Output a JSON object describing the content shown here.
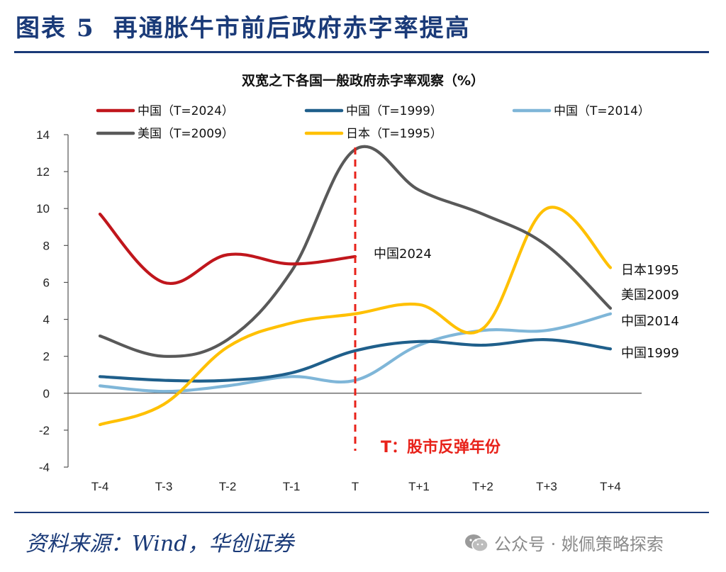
{
  "header": {
    "prefix": "图表",
    "number": "5",
    "title": "再通胀牛市前后政府赤字率提高"
  },
  "footer": {
    "source": "资料来源：Wind，华创证券"
  },
  "watermark": {
    "text": "公众号 · 姚佩策略探索",
    "icon": "wechat-icon"
  },
  "chart_data": {
    "type": "line",
    "title": "双宽之下各国一般政府赤字率观察（%）",
    "categories": [
      "T-4",
      "T-3",
      "T-2",
      "T-1",
      "T",
      "T+1",
      "T+2",
      "T+3",
      "T+4"
    ],
    "ylim": [
      -4,
      14
    ],
    "yticks": [
      -4,
      -2,
      0,
      2,
      4,
      6,
      8,
      10,
      12,
      14
    ],
    "grid": false,
    "legend_position": "top",
    "series": [
      {
        "name": "中国（T=2024）",
        "end_label": "中国2024",
        "color": "#c0161c",
        "values": [
          9.7,
          6.0,
          7.5,
          7.0,
          7.4,
          null,
          null,
          null,
          null
        ]
      },
      {
        "name": "中国（T=1999）",
        "end_label": "中国1999",
        "color": "#1f5f8b",
        "values": [
          0.9,
          0.7,
          0.7,
          1.1,
          2.3,
          2.8,
          2.6,
          2.9,
          2.4
        ]
      },
      {
        "name": "中国（T=2014）",
        "end_label": "中国2014",
        "color": "#7fb6d8",
        "values": [
          0.4,
          0.1,
          0.4,
          0.9,
          0.7,
          2.6,
          3.4,
          3.4,
          4.3
        ]
      },
      {
        "name": "美国（T=2009）",
        "end_label": "美国2009",
        "color": "#595959",
        "values": [
          3.1,
          2.0,
          2.9,
          6.6,
          13.2,
          11.0,
          9.7,
          8.0,
          4.6
        ]
      },
      {
        "name": "日本（T=1995）",
        "end_label": "日本1995",
        "color": "#ffc000",
        "values": [
          -1.7,
          -0.6,
          2.5,
          3.8,
          4.3,
          4.8,
          3.5,
          10.0,
          6.8
        ]
      }
    ],
    "annotation": {
      "text": "T：股市反弹年份",
      "color": "#e8221a"
    }
  }
}
